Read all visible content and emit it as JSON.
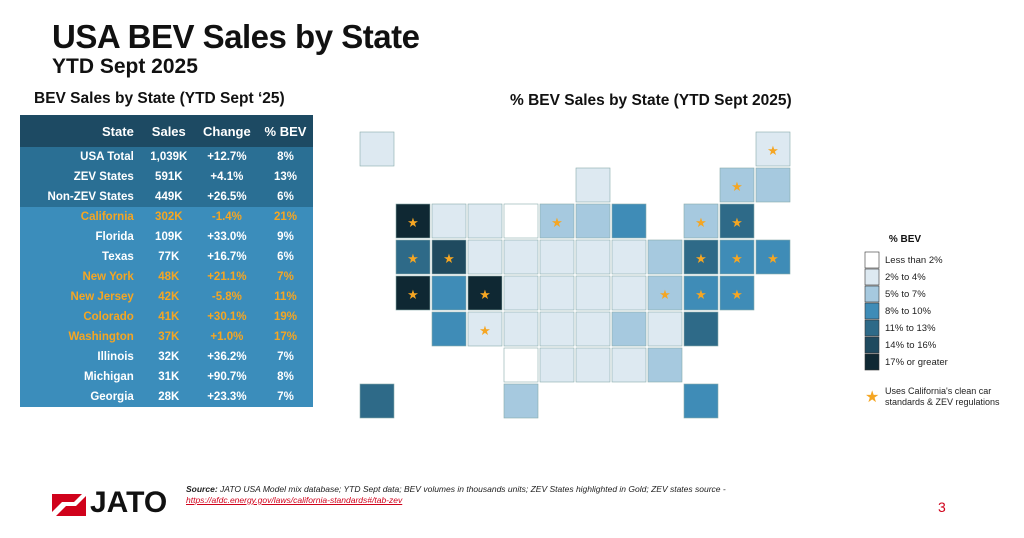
{
  "header": {
    "title": "USA BEV Sales by State",
    "subtitle": "YTD Sept 2025"
  },
  "table": {
    "title": "BEV Sales by State (YTD Sept ‘25)",
    "columns": [
      "State",
      "Sales",
      "Change",
      "% BEV"
    ],
    "rows": [
      {
        "cells": [
          "USA Total",
          "1,039K",
          "+12.7%",
          "8%"
        ],
        "color": "#ffffff"
      },
      {
        "cells": [
          "ZEV States",
          "591K",
          "+4.1%",
          "13%"
        ],
        "color": "#ffffff"
      },
      {
        "cells": [
          "Non-ZEV States",
          "449K",
          "+26.5%",
          "6%"
        ],
        "color": "#ffffff"
      },
      {
        "cells": [
          "California",
          "302K",
          "-1.4%",
          "21%"
        ],
        "color": "#f5a623"
      },
      {
        "cells": [
          "Florida",
          "109K",
          "+33.0%",
          "9%"
        ],
        "color": "#ffffff"
      },
      {
        "cells": [
          "Texas",
          "77K",
          "+16.7%",
          "6%"
        ],
        "color": "#ffffff"
      },
      {
        "cells": [
          "New York",
          "48K",
          "+21.1%",
          "7%"
        ],
        "color": "#f5a623"
      },
      {
        "cells": [
          "New Jersey",
          "42K",
          "-5.8%",
          "11%"
        ],
        "color": "#f5a623"
      },
      {
        "cells": [
          "Colorado",
          "41K",
          "+30.1%",
          "19%"
        ],
        "color": "#f5a623"
      },
      {
        "cells": [
          "Washington",
          "37K",
          "+1.0%",
          "17%"
        ],
        "color": "#f5a623"
      },
      {
        "cells": [
          "Illinois",
          "32K",
          "+36.2%",
          "7%"
        ],
        "color": "#ffffff"
      },
      {
        "cells": [
          "Michigan",
          "31K",
          "+90.7%",
          "8%"
        ],
        "color": "#ffffff"
      },
      {
        "cells": [
          "Georgia",
          "28K",
          "+23.3%",
          "7%"
        ],
        "color": "#ffffff"
      }
    ]
  },
  "map": {
    "title": "% BEV Sales by State (YTD Sept 2025)",
    "legend": {
      "title": "% BEV",
      "items": [
        {
          "label": "Less than 2%",
          "color": "#ffffff"
        },
        {
          "label": "2% to 4%",
          "color": "#dde9f1"
        },
        {
          "label": "5% to 7%",
          "color": "#a6c9df"
        },
        {
          "label": "8% to 10%",
          "color": "#3f8cb7"
        },
        {
          "label": "11% to 13%",
          "color": "#2e6a88"
        },
        {
          "label": "14% to 16%",
          "color": "#1f4a5f"
        },
        {
          "label": "17% or greater",
          "color": "#0f2833"
        }
      ]
    },
    "star_note": "Uses California's clean car standards & ZEV regulations"
  },
  "footer": {
    "source_label": "Source:",
    "source_text": "JATO USA Model mix database; YTD Sept data; BEV volumes in thousands units; ZEV States highlighted in Gold; ZEV states source -",
    "source_link": "https://afdc.energy.gov/laws/california-standards#/tab-zev",
    "logo": "JATO",
    "page_number": "3"
  }
}
